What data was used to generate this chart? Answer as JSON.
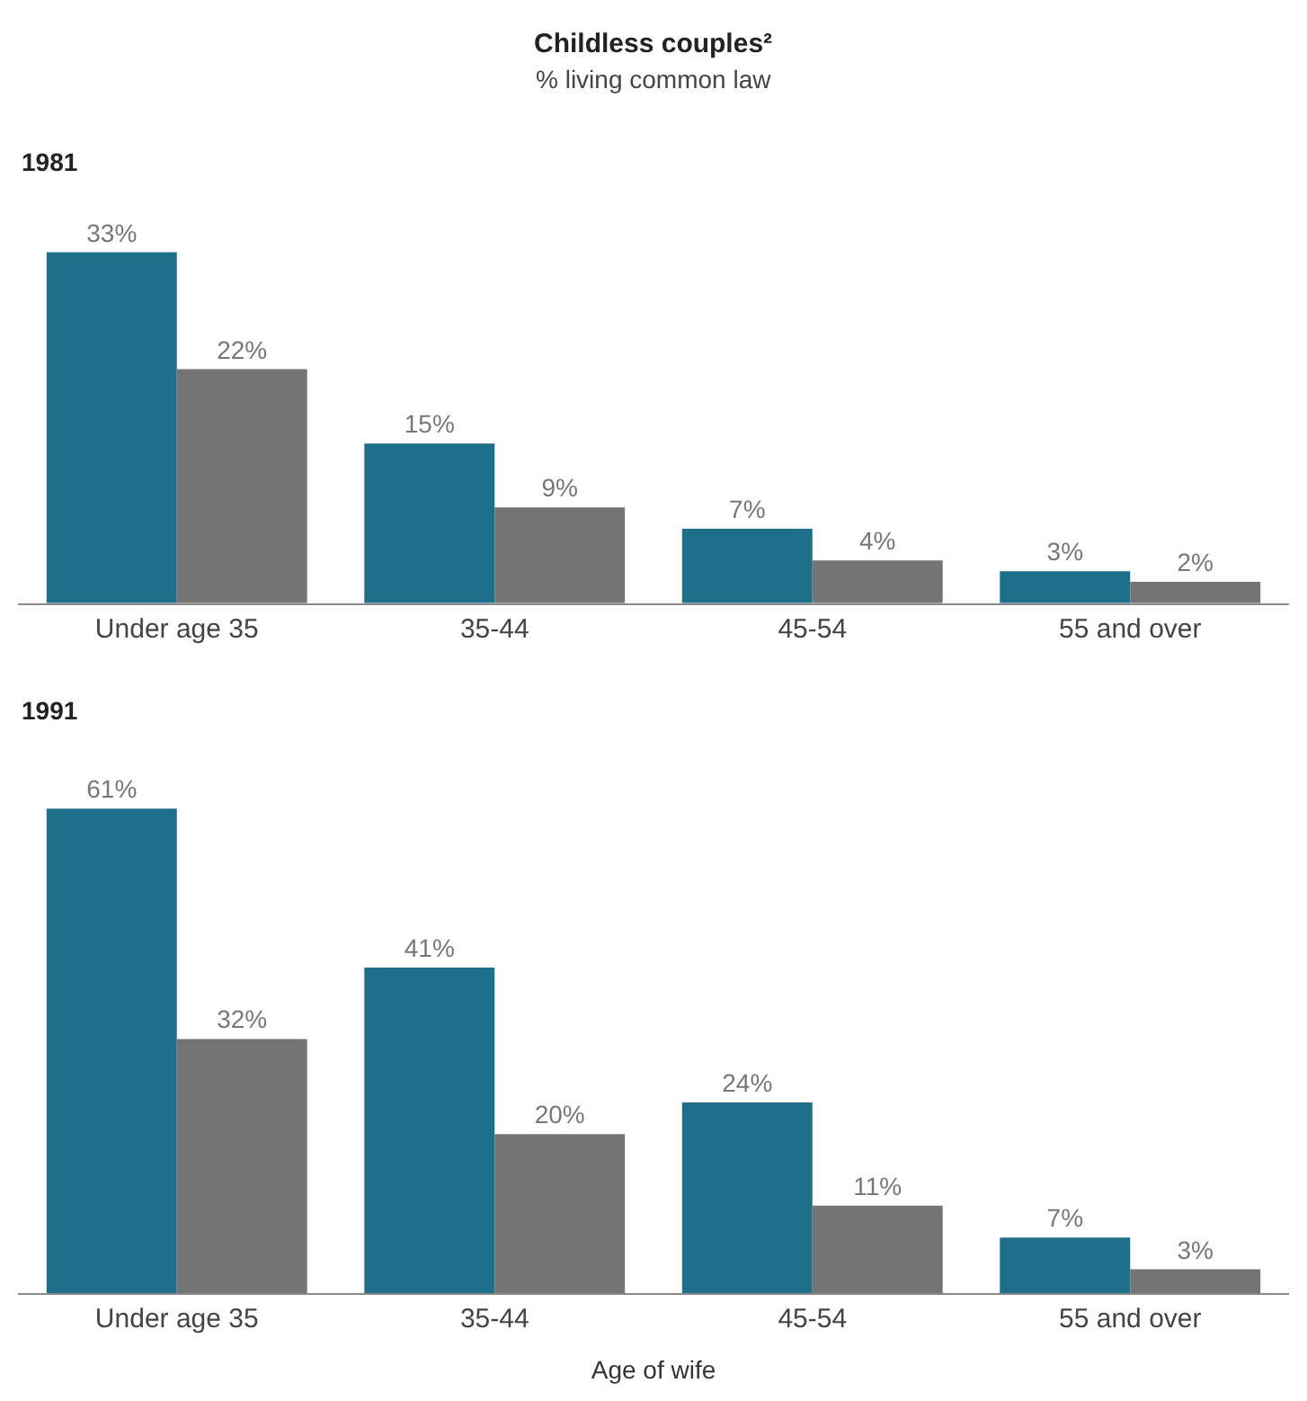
{
  "chart_data": [
    {
      "type": "bar",
      "title": "Childless couples²",
      "subtitle": "% living common law",
      "annotations": [
        "1981"
      ],
      "categories": [
        "Under age 35",
        "35-44",
        "45-54",
        "55 and over"
      ],
      "series": [
        {
          "color": "#1f6f8b",
          "values": [
            33,
            15,
            7,
            3
          ],
          "value_labels": [
            "33%",
            "15%",
            "7%",
            "3%"
          ]
        },
        {
          "color": "#747474",
          "values": [
            22,
            9,
            4,
            2
          ],
          "value_labels": [
            "22%",
            "9%",
            "4%",
            "2%"
          ]
        }
      ]
    },
    {
      "type": "bar",
      "title": "1991",
      "xlabel": "Age of wife",
      "categories": [
        "Under age 35",
        "35-44",
        "45-54",
        "55 and over"
      ],
      "series": [
        {
          "color": "#1f6f8b",
          "values": [
            61,
            41,
            24,
            7
          ],
          "value_labels": [
            "61%",
            "41%",
            "24%",
            "7%"
          ]
        },
        {
          "color": "#747474",
          "values": [
            32,
            20,
            11,
            3
          ],
          "value_labels": [
            "32%",
            "20%",
            "11%",
            "3%"
          ]
        }
      ]
    }
  ]
}
